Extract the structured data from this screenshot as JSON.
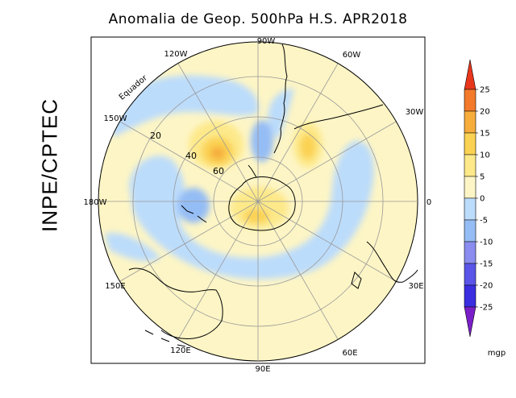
{
  "title": "Anomalia de Geop. 500hPa H.S. APR2018",
  "side_label": "INPE/CPTEC",
  "map": {
    "longitude_labels": [
      "90W",
      "60W",
      "30W",
      "0",
      "30E",
      "60E",
      "90E",
      "120E",
      "150E",
      "180W",
      "150W",
      "120W"
    ],
    "latitude_labels": [
      "Equador",
      "20",
      "40",
      "60"
    ]
  },
  "colorbar": {
    "ticks": [
      "25",
      "20",
      "15",
      "10",
      "5",
      "0",
      "-5",
      "-10",
      "-15",
      "-20",
      "-25"
    ],
    "colors": [
      "#e8361c",
      "#f37a2a",
      "#f6ad3c",
      "#fbd253",
      "#fde98a",
      "#fdf5c5",
      "#bcdcfb",
      "#95bdf5",
      "#8a8cef",
      "#5a55e8",
      "#3a2fe0",
      "#7a1fc8"
    ],
    "unit": "mgp"
  }
}
